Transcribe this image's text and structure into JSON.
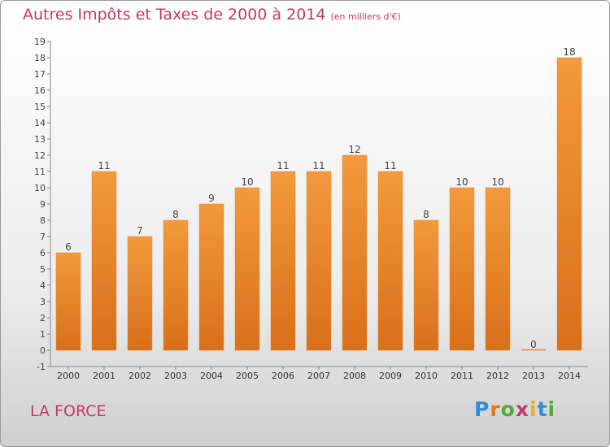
{
  "title": "Autres Impôts et Taxes de 2000 à 2014",
  "subtitle": "(en milliers d'€)",
  "place": "LA FORCE",
  "logo": {
    "letters": [
      "P",
      "r",
      "o",
      "x",
      "i",
      "t",
      "i"
    ],
    "colors": [
      "#2f8fd6",
      "#e07a1c",
      "#56a83a",
      "#c43a6e",
      "#e3b21f",
      "#2f8fd6",
      "#56a83a"
    ]
  },
  "colors": {
    "bar": "#f29a3d",
    "bar_dark": "#d96f1a",
    "title": "#c4386a"
  },
  "chart_data": {
    "type": "bar",
    "title": "Autres Impôts et Taxes de 2000 à 2014",
    "subtitle": "(en milliers d'€)",
    "xlabel": "",
    "ylabel": "",
    "categories": [
      "2000",
      "2001",
      "2002",
      "2003",
      "2004",
      "2005",
      "2006",
      "2007",
      "2008",
      "2009",
      "2010",
      "2011",
      "2012",
      "2013",
      "2014"
    ],
    "values": [
      6,
      11,
      7,
      8,
      9,
      10,
      11,
      11,
      12,
      11,
      8,
      10,
      10,
      0,
      18
    ],
    "data_labels": [
      "6",
      "11",
      "7",
      "8",
      "9",
      "10",
      "11",
      "11",
      "12",
      "11",
      "8",
      "10",
      "10",
      "0",
      "18"
    ],
    "y_ticks": [
      "-1",
      "0",
      "1",
      "2",
      "3",
      "4",
      "5",
      "6",
      "7",
      "8",
      "9",
      "10",
      "11",
      "12",
      "13",
      "14",
      "15",
      "16",
      "17",
      "18",
      "19"
    ],
    "ylim": [
      -1,
      19
    ],
    "grid": false,
    "legend": "none"
  }
}
